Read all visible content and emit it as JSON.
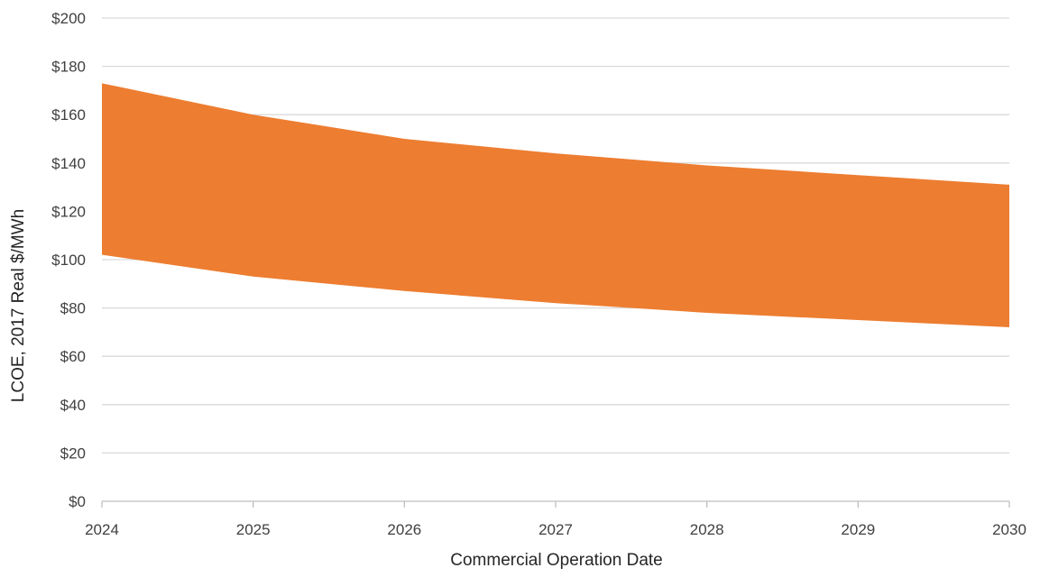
{
  "chart_data": {
    "type": "area",
    "xlabel": "Commercial Operation Date",
    "ylabel": "LCOE, 2017 Real $/MWh",
    "x": [
      2024,
      2025,
      2026,
      2027,
      2028,
      2029,
      2030
    ],
    "x_tick_labels": [
      "2024",
      "2025",
      "2026",
      "2027",
      "2028",
      "2029",
      "2030"
    ],
    "y_tick_labels": [
      "$0",
      "$20",
      "$40",
      "$60",
      "$80",
      "$100",
      "$120",
      "$140",
      "$160",
      "$180",
      "$200"
    ],
    "ylim": [
      0,
      200
    ],
    "xlim": [
      2024,
      2030
    ],
    "grid": true,
    "legend": "none",
    "series": [
      {
        "role": "band",
        "upper": [
          173,
          160,
          150,
          144,
          139,
          135,
          131
        ],
        "lower": [
          102,
          93,
          87,
          82,
          78,
          75,
          72
        ],
        "color": "#ed7d31"
      }
    ],
    "colors": {
      "band": "#ed7d31",
      "grid": "#d9d9d9",
      "axis": "#bfbfbf",
      "text": "#404040"
    }
  }
}
